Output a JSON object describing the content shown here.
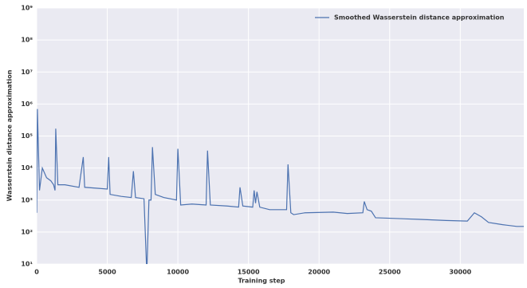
{
  "chart_data": {
    "type": "line",
    "xlabel": "Training step",
    "ylabel": "Wasserstein distance approximation",
    "log_y": true,
    "grid": true,
    "legend": "upper right",
    "xlim": [
      0,
      34500
    ],
    "ylim": [
      10,
      1000000000
    ],
    "xticks": [
      0,
      5000,
      10000,
      15000,
      20000,
      25000,
      30000
    ],
    "yticks": [
      {
        "value": 10,
        "label": "10¹"
      },
      {
        "value": 100,
        "label": "10²"
      },
      {
        "value": 1000,
        "label": "10³"
      },
      {
        "value": 10000,
        "label": "10⁴"
      },
      {
        "value": 100000,
        "label": "10⁵"
      },
      {
        "value": 1000000,
        "label": "10⁶"
      },
      {
        "value": 10000000,
        "label": "10⁷"
      },
      {
        "value": 100000000,
        "label": "10⁸"
      },
      {
        "value": 1000000000,
        "label": "10⁹"
      }
    ],
    "x": [
      0,
      50,
      200,
      400,
      700,
      1000,
      1200,
      1300,
      1350,
      1500,
      2000,
      3000,
      3300,
      3400,
      4500,
      5000,
      5100,
      5200,
      6000,
      6700,
      6850,
      7000,
      7600,
      7800,
      7950,
      8100,
      8200,
      8400,
      9000,
      9900,
      10000,
      10200,
      11000,
      12000,
      12100,
      12300,
      13500,
      14300,
      14400,
      14600,
      15300,
      15400,
      15500,
      15600,
      15800,
      16500,
      17700,
      17800,
      18000,
      18200,
      19000,
      21000,
      22000,
      23100,
      23200,
      23400,
      23700,
      24000,
      25000,
      27000,
      29000,
      30500,
      31000,
      31500,
      32000,
      33000,
      34000,
      34500
    ],
    "series": [
      {
        "name": "Smoothed Wasserstein distance approximation",
        "color": "#4c72b0",
        "values": [
          400,
          700000,
          2000,
          10000,
          5000,
          4000,
          3000,
          2000,
          170000,
          3000,
          3000,
          2500,
          22000,
          2500,
          2300,
          2200,
          22000,
          1500,
          1300,
          1200,
          8000,
          1200,
          1100,
          5,
          1000,
          1000,
          45000,
          1500,
          1200,
          1000,
          40000,
          700,
          750,
          700,
          35000,
          700,
          650,
          600,
          2500,
          650,
          600,
          2000,
          800,
          1800,
          600,
          500,
          500,
          13000,
          400,
          350,
          400,
          420,
          380,
          400,
          900,
          500,
          450,
          280,
          270,
          250,
          230,
          220,
          400,
          300,
          200,
          170,
          150,
          150
        ]
      }
    ]
  }
}
